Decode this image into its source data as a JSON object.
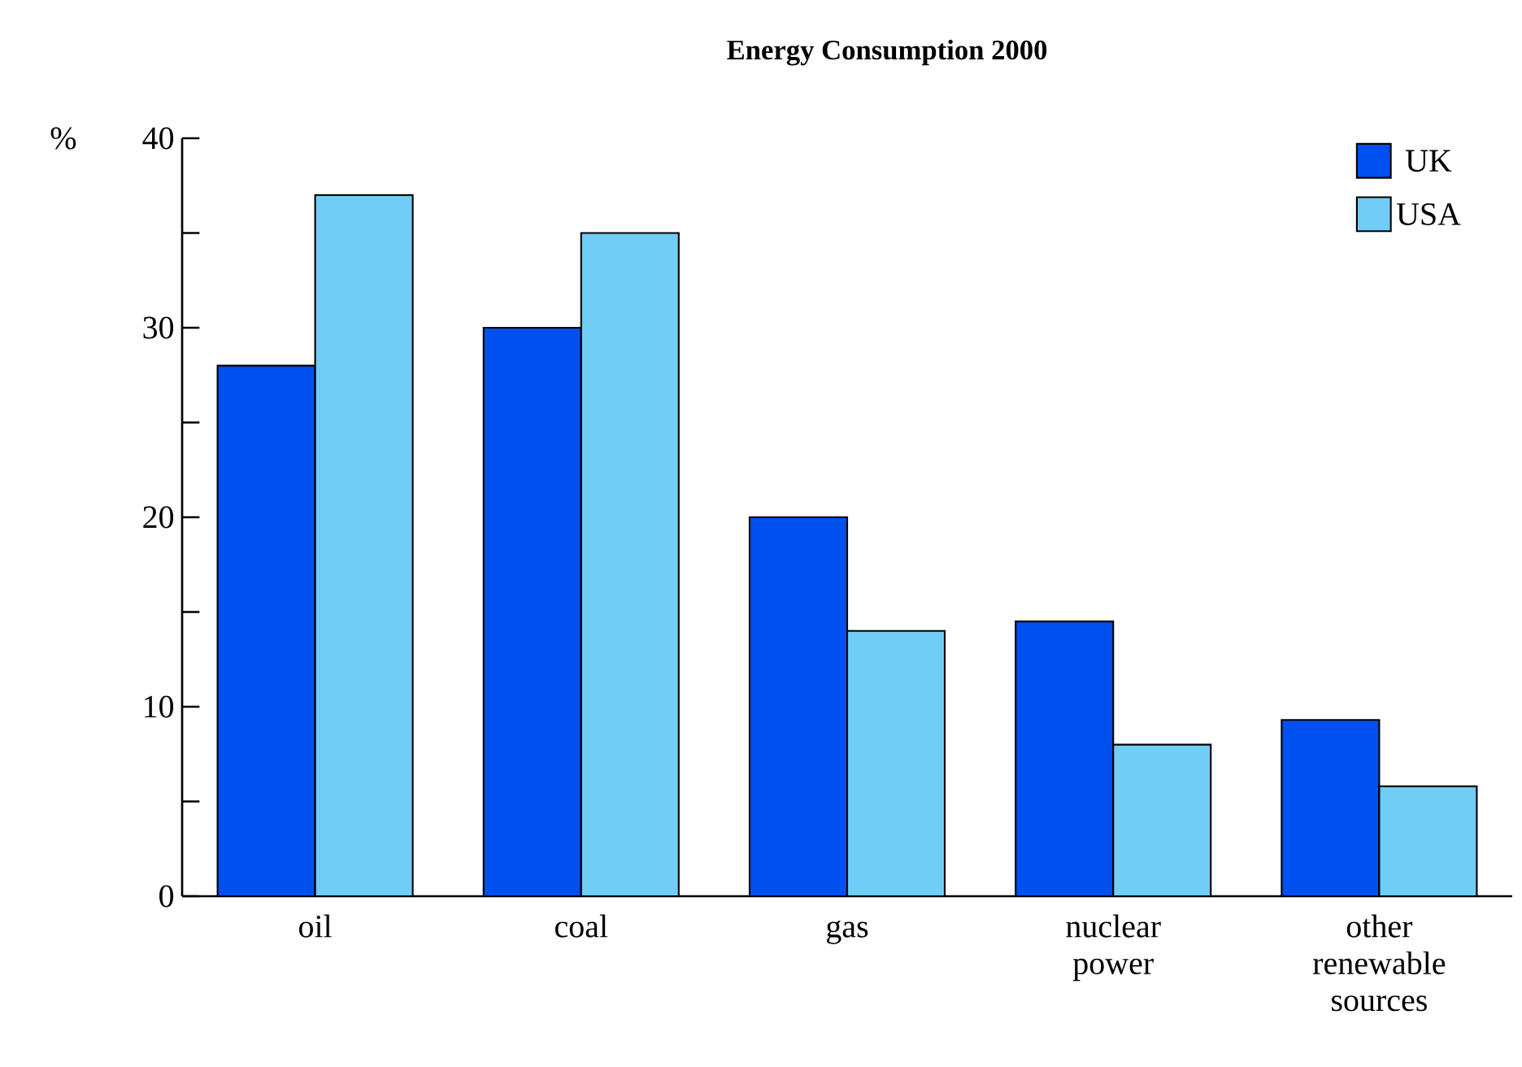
{
  "chart_data": {
    "type": "bar",
    "title": "Energy Consumption 2000",
    "ylabel": "%",
    "categories": [
      "oil",
      "coal",
      "gas",
      "nuclear power",
      "other renewable sources"
    ],
    "series": [
      {
        "name": "UK",
        "color": "#0050f0",
        "values": [
          28,
          30,
          20,
          14.5,
          9.3
        ]
      },
      {
        "name": "USA",
        "color": "#70cdf5",
        "values": [
          37,
          35,
          14,
          8,
          5.8
        ]
      }
    ],
    "ylim": [
      0,
      40
    ],
    "yticks": [
      0,
      {
        "value": 5,
        "label": null
      },
      10,
      {
        "value": 15,
        "label": null
      },
      20,
      {
        "value": 25,
        "label": null
      },
      30,
      {
        "value": 35,
        "label": null
      },
      40
    ],
    "grid": false,
    "legend": "top right"
  }
}
